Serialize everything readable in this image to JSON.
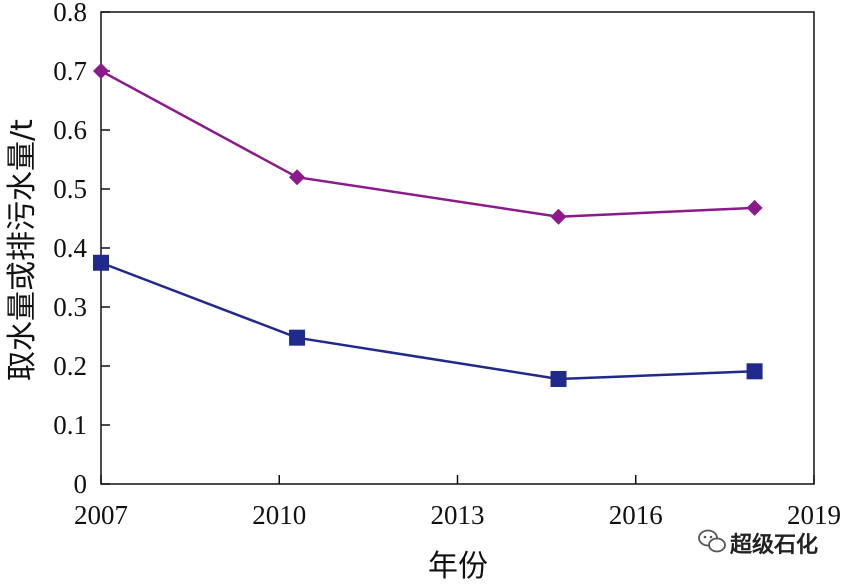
{
  "chart_data": {
    "type": "line",
    "xlabel": "年份",
    "ylabel": "取水量或排污水量/t",
    "xlim": [
      2007,
      2019
    ],
    "ylim": [
      0,
      0.8
    ],
    "xticks": [
      2007,
      2010,
      2013,
      2016,
      2019
    ],
    "yticks": [
      0,
      0.1,
      0.2,
      0.3,
      0.4,
      0.5,
      0.6,
      0.7,
      0.8
    ],
    "xtick_labels": [
      "2007",
      "2010",
      "2013",
      "2016",
      "2019"
    ],
    "ytick_labels": [
      "0",
      "0.1",
      "0.2",
      "0.3",
      "0.4",
      "0.5",
      "0.6",
      "0.7",
      "0.8"
    ],
    "grid": false,
    "legend": "none",
    "series": [
      {
        "color": "#8B1A8B",
        "marker": "diamond",
        "points": [
          [
            2007,
            0.7
          ],
          [
            2010.3,
            0.52
          ],
          [
            2014.7,
            0.453
          ],
          [
            2018,
            0.468
          ]
        ]
      },
      {
        "color": "#1F2A8C",
        "marker": "square",
        "points": [
          [
            2007,
            0.375
          ],
          [
            2010.3,
            0.248
          ],
          [
            2014.7,
            0.178
          ],
          [
            2018,
            0.191
          ]
        ]
      }
    ]
  },
  "watermark": {
    "text": "超级石化",
    "icon": "wechat-icon"
  }
}
